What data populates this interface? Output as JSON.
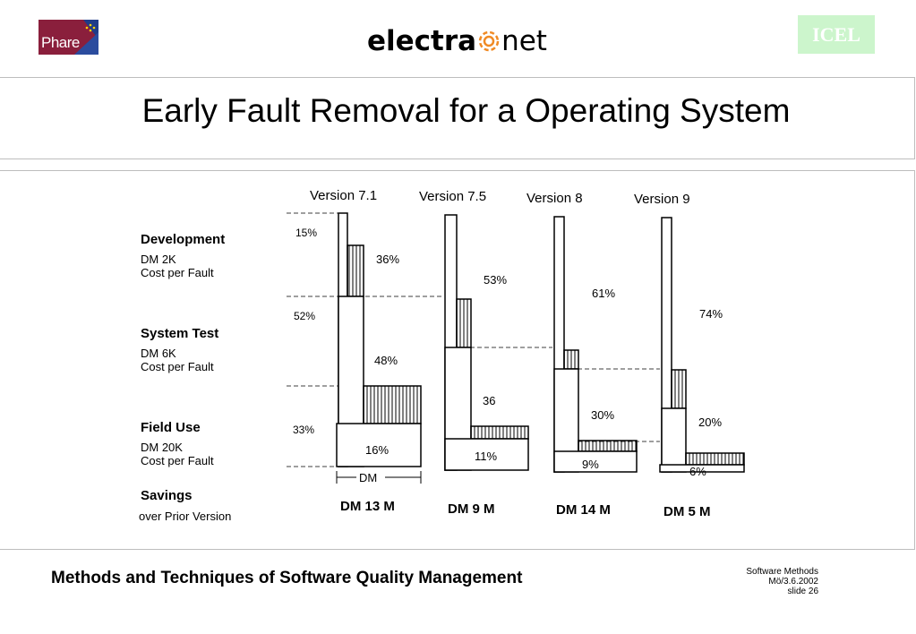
{
  "header": {
    "phare_logo": "Phare",
    "electra_logo_bold": "electra",
    "electra_logo_light": "net",
    "icel_logo": "ICEL"
  },
  "title": "Early Fault Removal for a Operating System",
  "diagram": {
    "row_labels": {
      "development": "Development",
      "development_cost_1": "DM 2K",
      "development_cost_2": "Cost per Fault",
      "system_test": "System Test",
      "system_test_cost_1": "DM 6K",
      "system_test_cost_2": "Cost per Fault",
      "field_use": "Field Use",
      "field_use_cost_1": "DM 20K",
      "field_use_cost_2": "Cost per Fault",
      "savings": "Savings",
      "savings_sub": "over Prior Version"
    },
    "left_percents": [
      "15%",
      "52%",
      "33%"
    ],
    "dm_axis_label": "DM",
    "versions": [
      {
        "name": "Version 7.1",
        "development": "36%",
        "system_test": "48%",
        "field_use": "16%",
        "savings": "DM  13 M"
      },
      {
        "name": "Version 7.5",
        "development": "53%",
        "system_test": "36",
        "field_use": "11%",
        "savings": "DM  9 M"
      },
      {
        "name": "Version 8",
        "development": "61%",
        "system_test": "30%",
        "field_use": "9%",
        "savings": "DM 14 M"
      },
      {
        "name": "Version 9",
        "development": "74%",
        "system_test": "20%",
        "field_use": "6%",
        "savings": "DM  5 M"
      }
    ]
  },
  "footer": {
    "course": "Methods and Techniques of Software Quality Management",
    "right_1": "Software Methods",
    "right_2": "Mö/3.6.2002",
    "right_3": "slide 26"
  }
}
